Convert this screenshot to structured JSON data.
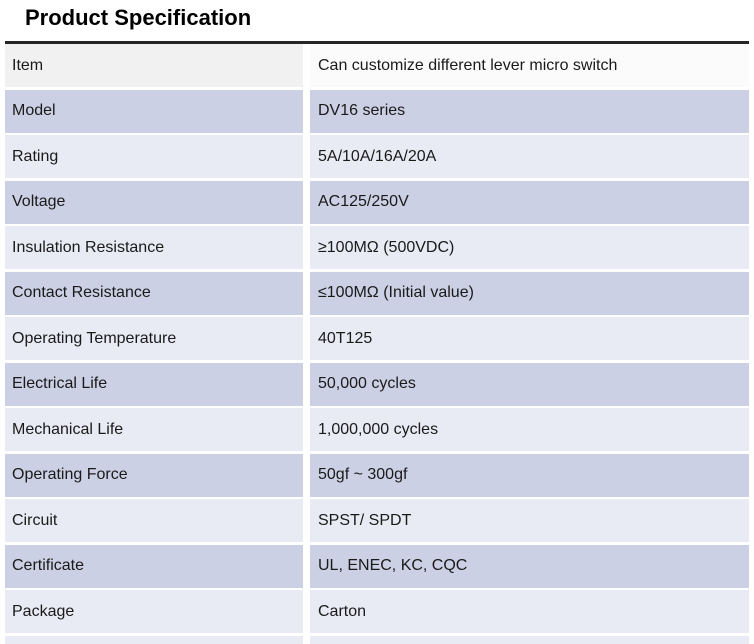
{
  "title": "Product Specification",
  "colors": {
    "top_border": "#262626",
    "header_left": "#f1f1f1",
    "header_right": "#fbfbfb",
    "row_lavender": "#cbd0e4",
    "row_light": "#e9ebf4"
  },
  "table": {
    "rows": [
      {
        "label": "Item",
        "value": "Can customize different lever micro switch"
      },
      {
        "label": "Model",
        "value": "DV16 series"
      },
      {
        "label": "Rating",
        "value": "5A/10A/16A/20A"
      },
      {
        "label": "Voltage",
        "value": "AC125/250V"
      },
      {
        "label": "Insulation Resistance",
        "value": "≥100MΩ (500VDC)"
      },
      {
        "label": "Contact Resistance",
        "value": "≤100MΩ (Initial value)"
      },
      {
        "label": "Operating Temperature",
        "value": "40T125"
      },
      {
        "label": "Electrical Life",
        "value": "50,000 cycles"
      },
      {
        "label": "Mechanical Life",
        "value": "1,000,000 cycles"
      },
      {
        "label": "Operating Force",
        "value": "50gf ~ 300gf"
      },
      {
        "label": "Circuit",
        "value": "SPST/ SPDT"
      },
      {
        "label": "Certificate",
        "value": "UL, ENEC, KC, CQC"
      },
      {
        "label": "Package",
        "value": "Carton"
      }
    ]
  }
}
